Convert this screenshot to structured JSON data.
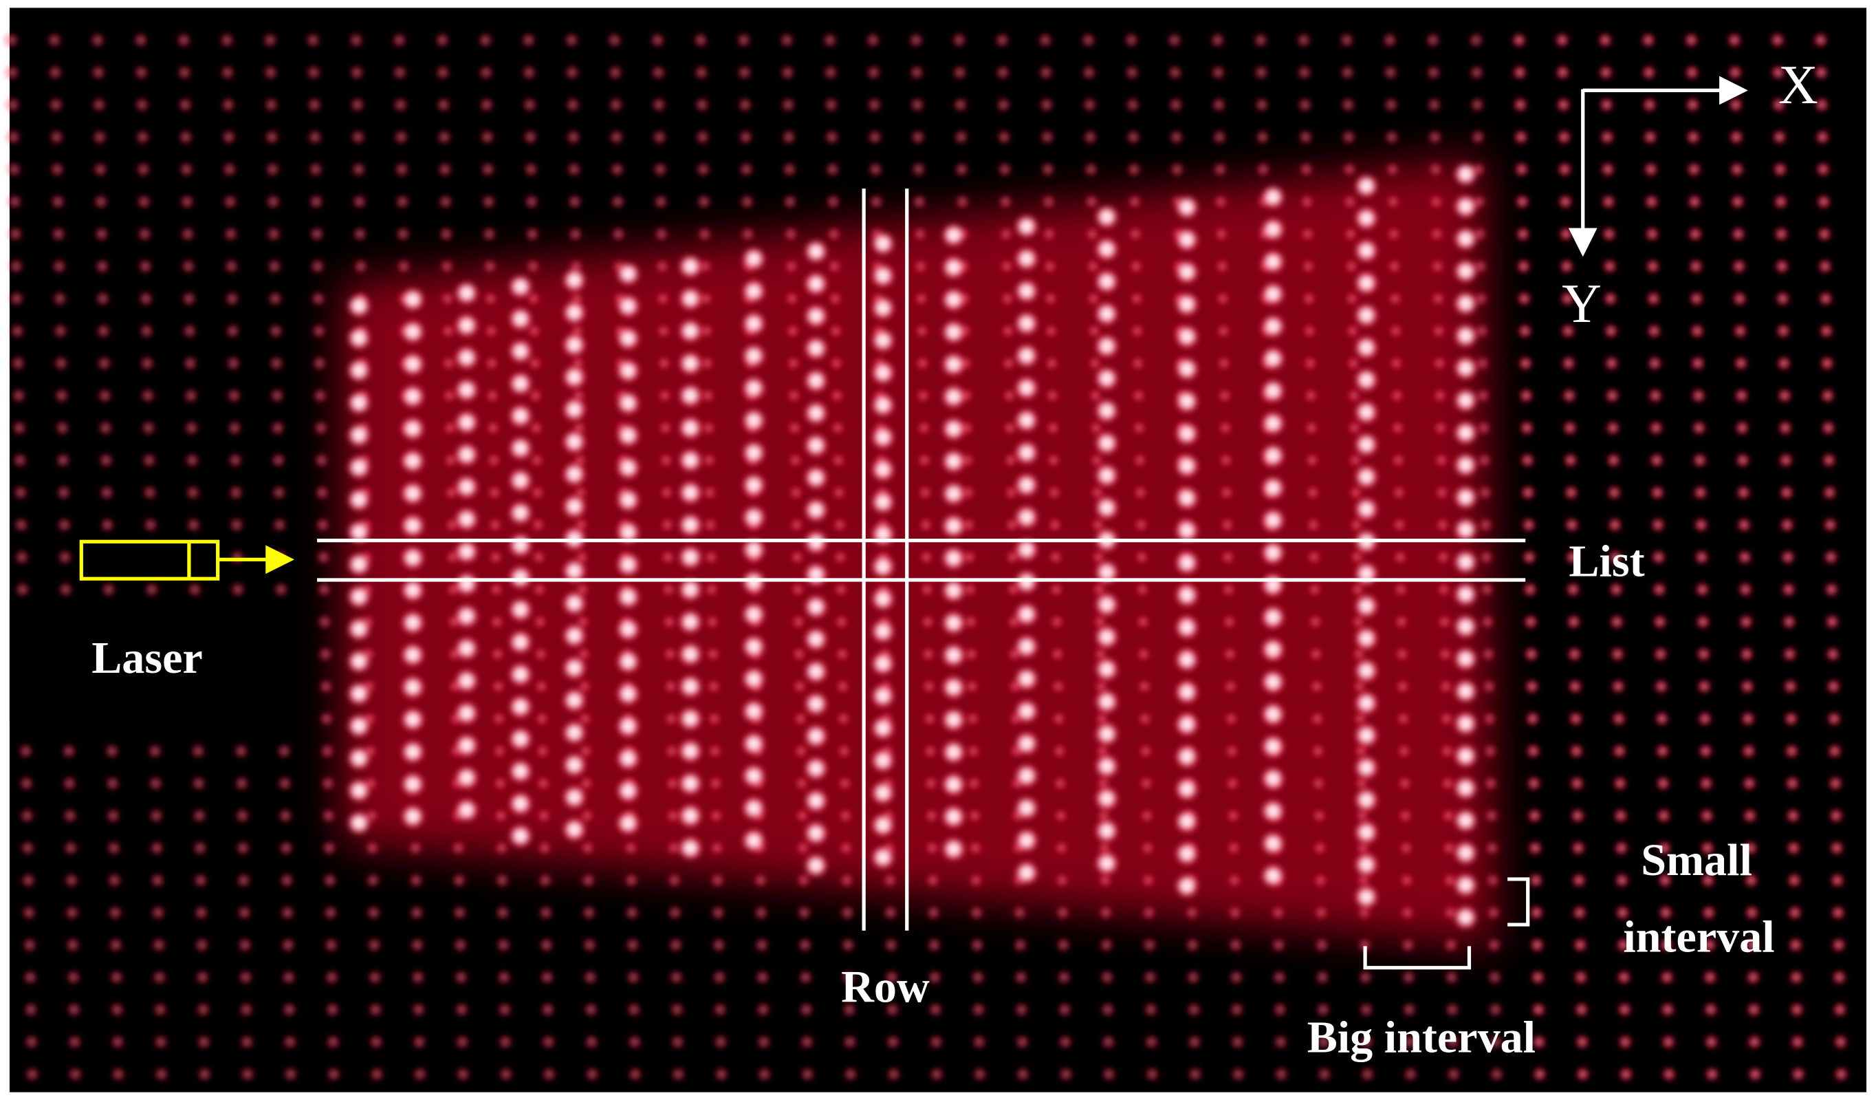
{
  "axes": {
    "x": "X",
    "y": "Y"
  },
  "labels": {
    "list": "List",
    "laser": "Laser",
    "row": "Row",
    "small_interval": [
      "Small",
      "interval"
    ],
    "big_interval": "Big interval"
  }
}
